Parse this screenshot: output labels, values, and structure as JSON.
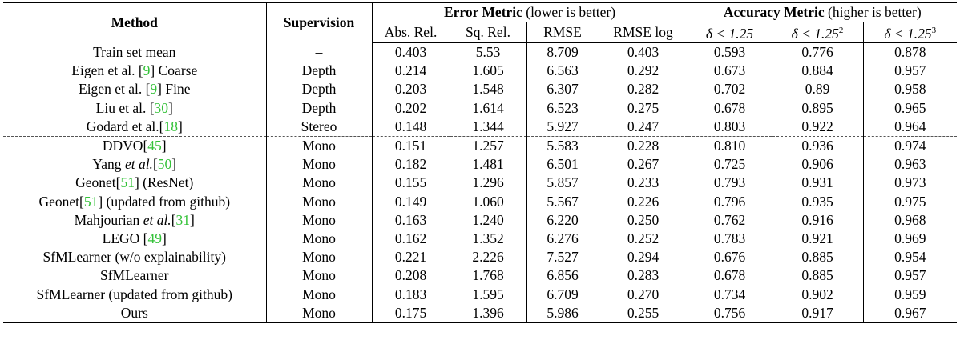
{
  "header": {
    "method": "Method",
    "supervision": "Supervision",
    "error_group_bold": "Error Metric",
    "error_group_note": " (lower is better)",
    "accuracy_group_bold": "Accuracy Metric",
    "accuracy_group_note": " (higher is better)",
    "error_cols": [
      "Abs. Rel.",
      "Sq. Rel.",
      "RMSE",
      "RMSE log"
    ],
    "acc_cols": [
      {
        "prefix": "δ < 1.25",
        "sup": ""
      },
      {
        "prefix": "δ < 1.25",
        "sup": "2"
      },
      {
        "prefix": "δ < 1.25",
        "sup": "3"
      }
    ]
  },
  "rows": [
    {
      "pre": "Train set mean",
      "cite": "",
      "post": "",
      "sup": "–",
      "v": [
        "0.403",
        "5.53",
        "8.709",
        "0.403",
        "0.593",
        "0.776",
        "0.878"
      ]
    },
    {
      "pre": "Eigen et al. [",
      "cite": "9",
      "post": "] Coarse",
      "sup": "Depth",
      "v": [
        "0.214",
        "1.605",
        "6.563",
        "0.292",
        "0.673",
        "0.884",
        "0.957"
      ]
    },
    {
      "pre": "Eigen et al. [",
      "cite": "9",
      "post": "] Fine",
      "sup": "Depth",
      "v": [
        "0.203",
        "1.548",
        "6.307",
        "0.282",
        "0.702",
        "0.89",
        "0.958"
      ]
    },
    {
      "pre": "Liu et al. [",
      "cite": "30",
      "post": "]",
      "sup": "Depth",
      "v": [
        "0.202",
        "1.614",
        "6.523",
        "0.275",
        "0.678",
        "0.895",
        "0.965"
      ]
    },
    {
      "pre": "Godard et al.[",
      "cite": "18",
      "post": "]",
      "sup": "Stereo",
      "v": [
        "0.148",
        "1.344",
        "5.927",
        "0.247",
        "0.803",
        "0.922",
        "0.964"
      ]
    },
    {
      "pre": "DDVO[",
      "cite": "45",
      "post": "]",
      "sup": "Mono",
      "v": [
        "0.151",
        "1.257",
        "5.583",
        "0.228",
        "0.810",
        "0.936",
        "0.974"
      ]
    },
    {
      "pre": "Yang ",
      "ital": "et al.",
      "pre2": "[",
      "cite": "50",
      "post": "]",
      "sup": "Mono",
      "v": [
        "0.182",
        "1.481",
        "6.501",
        "0.267",
        "0.725",
        "0.906",
        "0.963"
      ]
    },
    {
      "pre": "Geonet[",
      "cite": "51",
      "post": "] (ResNet)",
      "sup": "Mono",
      "v": [
        "0.155",
        "1.296",
        "5.857",
        "0.233",
        "0.793",
        "0.931",
        "0.973"
      ]
    },
    {
      "pre": "Geonet[",
      "cite": "51",
      "post": "] (updated from github)",
      "sup": "Mono",
      "v": [
        "0.149",
        "1.060",
        "5.567",
        "0.226",
        "0.796",
        "0.935",
        "0.975"
      ]
    },
    {
      "pre": "Mahjourian ",
      "ital": "et al.",
      "pre2": "[",
      "cite": "31",
      "post": "]",
      "sup": "Mono",
      "v": [
        "0.163",
        "1.240",
        "6.220",
        "0.250",
        "0.762",
        "0.916",
        "0.968"
      ]
    },
    {
      "pre": "LEGO [",
      "cite": "49",
      "post": "]",
      "sup": "Mono",
      "v": [
        "0.162",
        "1.352",
        "6.276",
        "0.252",
        "0.783",
        "0.921",
        "0.969"
      ]
    },
    {
      "pre": "SfMLearner (w/o explainability)",
      "cite": "",
      "post": "",
      "sup": "Mono",
      "v": [
        "0.221",
        "2.226",
        "7.527",
        "0.294",
        "0.676",
        "0.885",
        "0.954"
      ]
    },
    {
      "pre": "SfMLearner",
      "cite": "",
      "post": "",
      "sup": "Mono",
      "v": [
        "0.208",
        "1.768",
        "6.856",
        "0.283",
        "0.678",
        "0.885",
        "0.957"
      ]
    },
    {
      "pre": "SfMLearner (updated from github)",
      "cite": "",
      "post": "",
      "sup": "Mono",
      "v": [
        "0.183",
        "1.595",
        "6.709",
        "0.270",
        "0.734",
        "0.902",
        "0.959"
      ]
    },
    {
      "pre": "Ours",
      "cite": "",
      "post": "",
      "sup": "Mono",
      "v": [
        "0.175",
        "1.396",
        "5.986",
        "0.255",
        "0.756",
        "0.917",
        "0.967"
      ]
    }
  ]
}
